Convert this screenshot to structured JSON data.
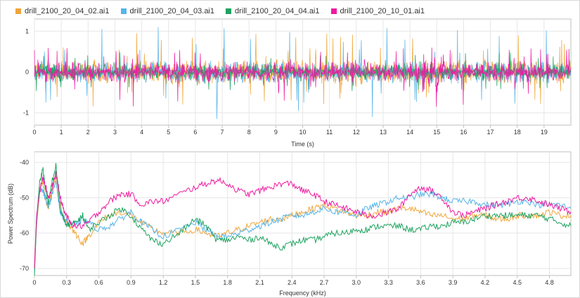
{
  "colors": {
    "series": [
      "#f0a53a",
      "#56b4e9",
      "#1ea35f",
      "#ee1ba0"
    ],
    "grid": "#e6e6e6",
    "axis": "#bfbfbf"
  },
  "legend": {
    "placement": "top-left",
    "items": [
      {
        "label": "drill_2100_20_04_02.ai1",
        "color": "#f0a53a"
      },
      {
        "label": "drill_2100_20_04_03.ai1",
        "color": "#56b4e9"
      },
      {
        "label": "drill_2100_20_04_04.ai1",
        "color": "#1ea35f"
      },
      {
        "label": "drill_2100_20_10_01.ai1",
        "color": "#ee1ba0"
      }
    ]
  },
  "chart_data": [
    {
      "type": "line",
      "title": "",
      "xlabel": "Time (s)",
      "ylabel": "",
      "xlim": [
        0,
        20
      ],
      "ylim": [
        -1.3,
        1.3
      ],
      "xticks": [
        "0",
        "1",
        "2",
        "3",
        "4",
        "5",
        "6",
        "7",
        "8",
        "9",
        "10",
        "11",
        "12",
        "13",
        "14",
        "15",
        "16",
        "17",
        "18",
        "19"
      ],
      "yticks": [
        {
          "v": 1,
          "label": "1"
        },
        {
          "v": 0,
          "label": "0"
        },
        {
          "v": -1,
          "label": "-1"
        }
      ],
      "grid": true,
      "series": [
        {
          "name": "drill_2100_20_04_02.ai1",
          "amplitude": 0.2,
          "peak_max": 0.95,
          "peak_min": -0.85
        },
        {
          "name": "drill_2100_20_04_03.ai1",
          "amplitude": 0.18,
          "peak_max": 1.1,
          "peak_min": -1.15
        },
        {
          "name": "drill_2100_20_04_04.ai1",
          "amplitude": 0.14,
          "peak_max": 0.5,
          "peak_min": -0.5
        },
        {
          "name": "drill_2100_20_10_01.ai1",
          "amplitude": 0.17,
          "peak_max": 0.6,
          "peak_min": -0.85
        }
      ]
    },
    {
      "type": "line",
      "title": "",
      "xlabel": "Frequency (kHz)",
      "ylabel": "Power Spectrum (dB)",
      "xlim": [
        0,
        5.0
      ],
      "ylim": [
        -72,
        -37
      ],
      "xticks": [
        "0",
        "0.3",
        "0.6",
        "0.9",
        "1.2",
        "1.5",
        "1.8",
        "2.1",
        "2.4",
        "2.7",
        "3.0",
        "3.3",
        "3.6",
        "3.9",
        "4.2",
        "4.5",
        "4.8"
      ],
      "yticks": [
        {
          "v": -40,
          "label": "-40"
        },
        {
          "v": -50,
          "label": "-50"
        },
        {
          "v": -60,
          "label": "-60"
        },
        {
          "v": -70,
          "label": "-70"
        }
      ],
      "grid": true,
      "x": [
        0,
        0.02,
        0.05,
        0.08,
        0.1,
        0.13,
        0.16,
        0.2,
        0.24,
        0.28,
        0.33,
        0.38,
        0.45,
        0.5,
        0.6,
        0.7,
        0.8,
        0.9,
        1.0,
        1.1,
        1.2,
        1.35,
        1.5,
        1.6,
        1.7,
        1.8,
        1.9,
        2.0,
        2.1,
        2.2,
        2.3,
        2.4,
        2.5,
        2.6,
        2.7,
        2.8,
        2.9,
        3.0,
        3.1,
        3.2,
        3.3,
        3.4,
        3.5,
        3.6,
        3.7,
        3.8,
        3.9,
        4.0,
        4.1,
        4.2,
        4.3,
        4.4,
        4.5,
        4.6,
        4.7,
        4.8,
        4.9,
        5.0
      ],
      "series": [
        {
          "name": "drill_2100_20_04_02.ai1",
          "values": [
            -70,
            -58,
            -48,
            -46,
            -50,
            -53,
            -48,
            -44,
            -52,
            -56,
            -58,
            -60,
            -63,
            -61,
            -57,
            -55,
            -54,
            -55,
            -57,
            -59,
            -60,
            -60,
            -59,
            -60,
            -61,
            -60,
            -59,
            -58,
            -57,
            -56,
            -56,
            -55,
            -54,
            -53,
            -52,
            -53,
            -54,
            -55,
            -55,
            -54,
            -54,
            -53,
            -53,
            -54,
            -55,
            -55,
            -56,
            -56,
            -55,
            -55,
            -56,
            -56,
            -55,
            -55,
            -55,
            -54,
            -55,
            -55
          ]
        },
        {
          "name": "drill_2100_20_04_03.ai1",
          "values": [
            -71,
            -57,
            -47,
            -48,
            -50,
            -52,
            -50,
            -45,
            -54,
            -56,
            -57,
            -58,
            -56,
            -57,
            -59,
            -58,
            -56,
            -54,
            -57,
            -59,
            -61,
            -59,
            -57,
            -59,
            -61,
            -61,
            -60,
            -59,
            -58,
            -57,
            -56,
            -55,
            -55,
            -54,
            -53,
            -54,
            -54,
            -55,
            -53,
            -52,
            -51,
            -50,
            -50,
            -49,
            -49,
            -50,
            -51,
            -51,
            -51,
            -52,
            -52,
            -52,
            -51,
            -51,
            -52,
            -52,
            -52,
            -53
          ]
        },
        {
          "name": "drill_2100_20_04_04.ai1",
          "values": [
            -72,
            -56,
            -45,
            -42,
            -47,
            -52,
            -46,
            -41,
            -53,
            -57,
            -58,
            -57,
            -55,
            -59,
            -57,
            -55,
            -53,
            -55,
            -59,
            -62,
            -63,
            -60,
            -56,
            -58,
            -62,
            -62,
            -61,
            -62,
            -61,
            -63,
            -64,
            -63,
            -62,
            -62,
            -61,
            -60,
            -60,
            -59,
            -59,
            -58,
            -58,
            -58,
            -59,
            -59,
            -58,
            -58,
            -57,
            -57,
            -56,
            -55,
            -55,
            -55,
            -55,
            -55,
            -55,
            -56,
            -57,
            -58
          ]
        },
        {
          "name": "drill_2100_20_10_01.ai1",
          "values": [
            -70,
            -55,
            -48,
            -44,
            -46,
            -50,
            -48,
            -43,
            -50,
            -54,
            -57,
            -58,
            -58,
            -57,
            -54,
            -51,
            -49,
            -49,
            -52,
            -51,
            -51,
            -49,
            -47,
            -46,
            -45,
            -46,
            -48,
            -49,
            -48,
            -47,
            -46,
            -46,
            -48,
            -49,
            -51,
            -52,
            -53,
            -54,
            -55,
            -55,
            -54,
            -53,
            -49,
            -47,
            -48,
            -50,
            -54,
            -55,
            -54,
            -53,
            -52,
            -51,
            -50,
            -50,
            -51,
            -52,
            -53,
            -54
          ]
        }
      ]
    }
  ]
}
